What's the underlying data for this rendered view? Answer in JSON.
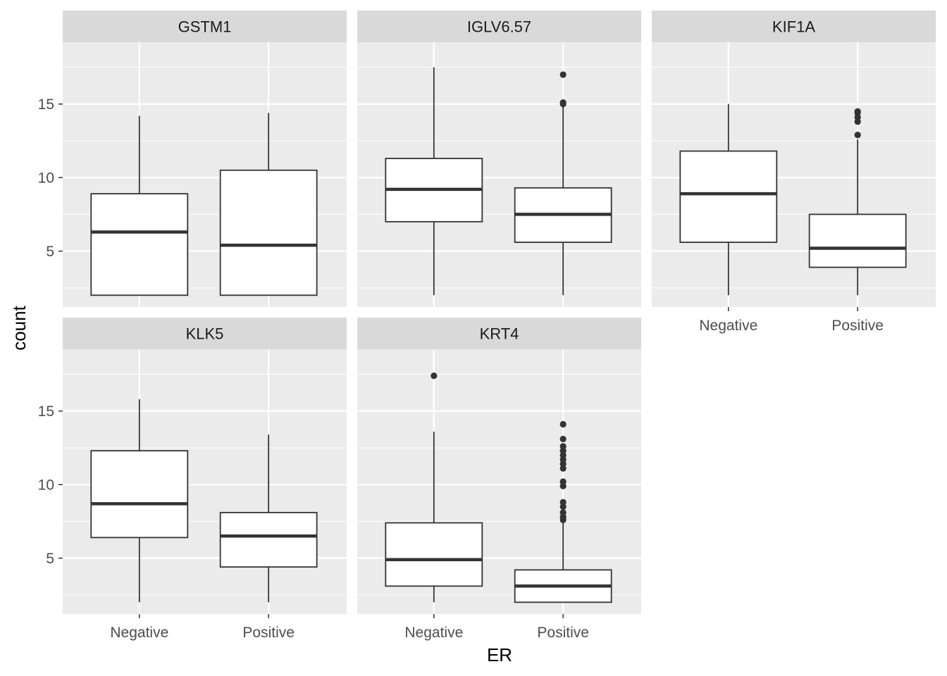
{
  "chart_data": {
    "type": "boxplot",
    "facet_layout": "3 columns x 2 rows, free x-axis labels on bottom row panels",
    "xlabel": "ER",
    "ylabel": "count",
    "ylim": [
      1.2,
      19.2
    ],
    "yticks": [
      5,
      10,
      15
    ],
    "categories": [
      "Negative",
      "Positive"
    ],
    "grid": true,
    "colors": {
      "panel_bg": "#ebebeb",
      "strip_bg": "#d9d9d9",
      "grid": "#ffffff",
      "box_fill": "#ffffff",
      "box_line": "#333333",
      "outlier": "#333333"
    },
    "facets": [
      {
        "name": "GSTM1",
        "boxes": [
          {
            "category": "Negative",
            "min": 2.0,
            "q1": 2.0,
            "median": 6.3,
            "q3": 8.9,
            "max": 14.2,
            "outliers": []
          },
          {
            "category": "Positive",
            "min": 2.0,
            "q1": 2.0,
            "median": 5.4,
            "q3": 10.5,
            "max": 14.4,
            "outliers": []
          }
        ]
      },
      {
        "name": "IGLV6.57",
        "boxes": [
          {
            "category": "Negative",
            "min": 2.0,
            "q1": 7.0,
            "median": 9.2,
            "q3": 11.3,
            "max": 17.5,
            "outliers": []
          },
          {
            "category": "Positive",
            "min": 2.0,
            "q1": 5.6,
            "median": 7.5,
            "q3": 9.3,
            "max": 14.9,
            "outliers": [
              15.1,
              15.0,
              17.0
            ]
          }
        ]
      },
      {
        "name": "KIF1A",
        "boxes": [
          {
            "category": "Negative",
            "min": 2.0,
            "q1": 5.6,
            "median": 8.9,
            "q3": 11.8,
            "max": 15.0,
            "outliers": []
          },
          {
            "category": "Positive",
            "min": 2.0,
            "q1": 3.9,
            "median": 5.2,
            "q3": 7.5,
            "max": 12.6,
            "outliers": [
              12.9,
              13.8,
              14.1,
              14.4,
              14.5
            ]
          }
        ]
      },
      {
        "name": "KLK5",
        "boxes": [
          {
            "category": "Negative",
            "min": 2.0,
            "q1": 6.4,
            "median": 8.7,
            "q3": 12.3,
            "max": 15.8,
            "outliers": []
          },
          {
            "category": "Positive",
            "min": 2.0,
            "q1": 4.4,
            "median": 6.5,
            "q3": 8.1,
            "max": 13.4,
            "outliers": []
          }
        ]
      },
      {
        "name": "KRT4",
        "boxes": [
          {
            "category": "Negative",
            "min": 2.0,
            "q1": 3.1,
            "median": 4.9,
            "q3": 7.4,
            "max": 13.6,
            "outliers": [
              17.4
            ]
          },
          {
            "category": "Positive",
            "min": 2.0,
            "q1": 2.0,
            "median": 3.1,
            "q3": 4.2,
            "max": 7.4,
            "outliers": [
              7.6,
              7.8,
              8.1,
              8.5,
              8.8,
              9.9,
              10.2,
              11.1,
              11.4,
              11.7,
              12.0,
              12.3,
              12.6,
              13.1,
              14.1
            ]
          }
        ]
      }
    ]
  }
}
